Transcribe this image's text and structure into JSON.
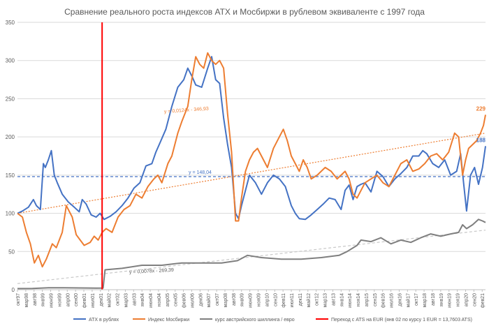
{
  "chart_data": {
    "type": "line",
    "title": "Сравнение реального роста индексов ATX и Мосбиржи в рублевом эквиваленте с 1997 года",
    "ylim": [
      0,
      350
    ],
    "yticks": [
      0,
      50,
      100,
      150,
      200,
      250,
      300,
      350
    ],
    "x_start": 1997.75,
    "x_end": 2021.25,
    "xtick_labels": [
      "окт97",
      "мар98",
      "авг98",
      "янв99",
      "июн99",
      "ноя99",
      "апр00",
      "сен00",
      "фев01",
      "июл01",
      "дек01",
      "май02",
      "окт02",
      "мар03",
      "авг03",
      "янв04",
      "июн04",
      "ноя04",
      "апр05",
      "сен05",
      "фев06",
      "июл06",
      "дек06",
      "май07",
      "окт07",
      "мар08",
      "авг08",
      "янв09",
      "июн09",
      "ноя09",
      "апр10",
      "сен10",
      "фев11",
      "июл11",
      "дек11",
      "май12",
      "окт12",
      "мар13",
      "авг13",
      "янв14",
      "июн14",
      "ноя14",
      "апр15",
      "сен15",
      "фев16",
      "июл16",
      "дек16",
      "май17",
      "окт17",
      "мар18",
      "авг18",
      "янв19",
      "июн19",
      "ноя19",
      "апр20",
      "сен20",
      "фев21"
    ],
    "series": [
      {
        "name": "ATX в рублях",
        "color": "#4472C4",
        "last_label": "188",
        "x": [
          1997.75,
          1998.0,
          1998.3,
          1998.55,
          1998.7,
          1998.9,
          1999.05,
          1999.15,
          1999.3,
          1999.45,
          1999.6,
          1999.75,
          2000.0,
          2000.3,
          2000.6,
          2000.85,
          2001.0,
          2001.2,
          2001.45,
          2001.7,
          2001.9,
          2002.1,
          2002.4,
          2002.7,
          2003.0,
          2003.3,
          2003.6,
          2003.9,
          2004.2,
          2004.5,
          2004.7,
          2004.9,
          2005.2,
          2005.5,
          2005.8,
          2006.1,
          2006.3,
          2006.5,
          2006.7,
          2007.0,
          2007.3,
          2007.5,
          2007.7,
          2007.9,
          2008.1,
          2008.3,
          2008.5,
          2008.7,
          2008.85,
          2009.0,
          2009.2,
          2009.4,
          2009.7,
          2010.0,
          2010.3,
          2010.6,
          2010.9,
          2011.2,
          2011.5,
          2011.7,
          2011.9,
          2012.2,
          2012.5,
          2012.8,
          2013.1,
          2013.4,
          2013.7,
          2014.0,
          2014.2,
          2014.4,
          2014.6,
          2014.8,
          2015.0,
          2015.2,
          2015.5,
          2015.8,
          2016.1,
          2016.4,
          2016.7,
          2017.0,
          2017.3,
          2017.6,
          2017.9,
          2018.1,
          2018.3,
          2018.6,
          2018.9,
          2019.2,
          2019.5,
          2019.8,
          2020.0,
          2020.15,
          2020.3,
          2020.5,
          2020.7,
          2020.9,
          2021.1,
          2021.25
        ],
        "y": [
          100,
          103,
          108,
          118,
          110,
          105,
          165,
          160,
          170,
          182,
          150,
          140,
          125,
          115,
          108,
          102,
          118,
          112,
          98,
          95,
          100,
          92,
          96,
          102,
          110,
          120,
          133,
          140,
          162,
          165,
          180,
          192,
          210,
          240,
          265,
          275,
          290,
          280,
          268,
          265,
          290,
          305,
          275,
          270,
          225,
          190,
          160,
          100,
          93,
          110,
          130,
          150,
          140,
          125,
          140,
          150,
          145,
          135,
          110,
          100,
          93,
          92,
          98,
          105,
          112,
          120,
          118,
          105,
          130,
          137,
          118,
          135,
          138,
          140,
          128,
          155,
          148,
          135,
          145,
          152,
          160,
          175,
          175,
          182,
          178,
          165,
          160,
          170,
          150,
          155,
          178,
          140,
          103,
          150,
          160,
          138,
          160,
          188
        ]
      },
      {
        "name": "Индекс Мосбиржи",
        "color": "#ED7D31",
        "last_label": "229",
        "x": [
          1997.75,
          1998.0,
          1998.2,
          1998.4,
          1998.6,
          1998.8,
          1999.0,
          1999.2,
          1999.5,
          1999.7,
          2000.0,
          2000.2,
          2000.5,
          2000.7,
          2000.9,
          2001.1,
          2001.4,
          2001.6,
          2001.8,
          2002.0,
          2002.2,
          2002.5,
          2002.8,
          2003.1,
          2003.4,
          2003.7,
          2004.0,
          2004.3,
          2004.6,
          2004.8,
          2005.0,
          2005.3,
          2005.5,
          2005.8,
          2006.0,
          2006.3,
          2006.5,
          2006.7,
          2006.9,
          2007.1,
          2007.3,
          2007.5,
          2007.7,
          2007.9,
          2008.1,
          2008.3,
          2008.5,
          2008.7,
          2008.85,
          2009.0,
          2009.2,
          2009.4,
          2009.6,
          2009.8,
          2010.0,
          2010.3,
          2010.6,
          2010.9,
          2011.1,
          2011.3,
          2011.5,
          2011.7,
          2011.9,
          2012.1,
          2012.3,
          2012.5,
          2012.8,
          2013.0,
          2013.2,
          2013.5,
          2013.8,
          2014.0,
          2014.2,
          2014.4,
          2014.6,
          2014.8,
          2015.0,
          2015.2,
          2015.5,
          2015.8,
          2016.1,
          2016.4,
          2016.7,
          2017.0,
          2017.3,
          2017.6,
          2017.9,
          2018.2,
          2018.5,
          2018.8,
          2019.1,
          2019.4,
          2019.7,
          2019.9,
          2020.1,
          2020.25,
          2020.4,
          2020.6,
          2020.8,
          2021.0,
          2021.15,
          2021.25
        ],
        "y": [
          100,
          95,
          75,
          60,
          35,
          45,
          30,
          40,
          60,
          55,
          75,
          110,
          95,
          72,
          65,
          58,
          62,
          70,
          65,
          75,
          80,
          75,
          95,
          105,
          110,
          125,
          120,
          135,
          145,
          150,
          140,
          165,
          175,
          205,
          220,
          240,
          275,
          305,
          295,
          290,
          310,
          300,
          295,
          300,
          290,
          230,
          180,
          90,
          90,
          120,
          155,
          170,
          180,
          185,
          175,
          160,
          185,
          200,
          210,
          195,
          175,
          165,
          155,
          170,
          160,
          145,
          150,
          155,
          160,
          155,
          145,
          150,
          155,
          145,
          125,
          120,
          130,
          140,
          145,
          150,
          140,
          135,
          150,
          165,
          170,
          155,
          158,
          165,
          175,
          178,
          170,
          180,
          205,
          200,
          150,
          170,
          185,
          190,
          195,
          205,
          215,
          229
        ]
      },
      {
        "name": "курс австрийского шиллинга / евро",
        "color": "#7F7F7F",
        "x": [
          1997.75,
          1998.5,
          1999.3,
          2000.1,
          2000.9,
          2001.7,
          2002.05,
          2002.15,
          2003.0,
          2004.0,
          2005.0,
          2006.0,
          2007.0,
          2008.0,
          2008.8,
          2009.3,
          2010.0,
          2011.0,
          2012.0,
          2013.0,
          2013.9,
          2014.3,
          2014.8,
          2015.0,
          2015.5,
          2016.0,
          2016.5,
          2017.0,
          2017.5,
          2018.0,
          2018.5,
          2019.0,
          2019.5,
          2019.9,
          2020.1,
          2020.3,
          2020.6,
          2020.9,
          2021.1,
          2021.25
        ],
        "y": [
          1.5,
          1.6,
          2.5,
          2.5,
          2.3,
          2.1,
          2.2,
          26,
          28,
          32,
          32,
          35,
          35,
          35,
          38,
          45,
          42,
          40,
          40,
          42,
          45,
          50,
          58,
          65,
          63,
          68,
          60,
          65,
          62,
          68,
          73,
          70,
          73,
          75,
          85,
          80,
          85,
          92,
          90,
          88
        ]
      }
    ],
    "trendlines": [
      {
        "label": "y = 148,04",
        "color": "#4472C4",
        "style": "dashed",
        "type": "constant",
        "value": 148.04
      },
      {
        "label": "y = 0,0124x - 346,93",
        "color": "#ED7D31",
        "style": "dotted",
        "type": "linear",
        "y_start": 100,
        "y_end": 205
      },
      {
        "label": "y = 0,0078x - 269,39",
        "color": "#C8C8C8",
        "style": "dashed",
        "type": "linear",
        "y_start": 8,
        "y_end": 78
      }
    ],
    "vertical_marker": {
      "x": 2002.0,
      "color": "#FF0000",
      "name": "Переход с ATS на EUR (янв 02 по курсу 1 EUR = 13,7603 ATS)"
    },
    "legend": {
      "position": "bottom"
    }
  }
}
